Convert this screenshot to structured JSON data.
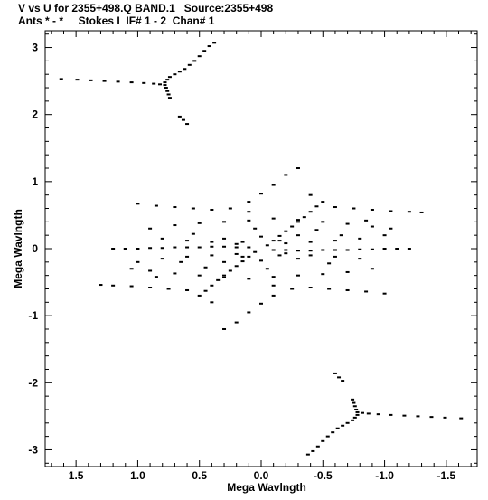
{
  "header": {
    "line1": "V vs U for 2355+498.Q BAND.1   Source:2355+498",
    "line2": "Ants * - *     Stokes I  IF# 1 - 2  Chan# 1"
  },
  "colors": {
    "ink": "#000000",
    "background": "#ffffff"
  },
  "chart_data": {
    "type": "scatter",
    "title": "V vs U for 2355+498.Q BAND.1   Source:2355+498",
    "subtitle": "Ants * - *     Stokes I  IF# 1 - 2  Chan# 1",
    "xlabel": "Mega Wavlngth",
    "ylabel": "Mega Wavlngth",
    "xlim": [
      1.75,
      -1.75
    ],
    "ylim": [
      -3.25,
      3.25
    ],
    "x_reversed": true,
    "xticks": [
      1.5,
      1.0,
      0.5,
      0.0,
      -0.5,
      -1.0,
      -1.5
    ],
    "xtick_labels": [
      "1.5",
      "1.0",
      "0.5",
      "0.0",
      "-0.5",
      "-1.0",
      "-1.5"
    ],
    "yticks": [
      3,
      2,
      1,
      0,
      -1,
      -2,
      -3
    ],
    "ytick_labels": [
      "3",
      "2",
      "1",
      "0",
      "-1",
      "-2",
      "-3"
    ],
    "grid": false,
    "series": [
      {
        "values": [
          [
            1.62,
            2.53
          ],
          [
            1.49,
            2.52
          ],
          [
            1.38,
            2.51
          ],
          [
            1.27,
            2.5
          ],
          [
            1.16,
            2.49
          ],
          [
            1.05,
            2.48
          ],
          [
            0.95,
            2.47
          ],
          [
            0.87,
            2.46
          ],
          [
            0.82,
            2.45
          ],
          [
            0.78,
            2.44
          ],
          [
            0.78,
            2.48
          ],
          [
            0.76,
            2.52
          ],
          [
            0.74,
            2.56
          ],
          [
            0.7,
            2.6
          ],
          [
            0.66,
            2.64
          ],
          [
            0.62,
            2.68
          ],
          [
            0.58,
            2.74
          ],
          [
            0.54,
            2.8
          ],
          [
            0.5,
            2.87
          ],
          [
            0.46,
            2.95
          ],
          [
            0.42,
            3.02
          ],
          [
            0.38,
            3.07
          ],
          [
            0.77,
            2.4
          ],
          [
            0.76,
            2.35
          ],
          [
            0.75,
            2.3
          ],
          [
            0.74,
            2.25
          ],
          [
            0.66,
            1.97
          ],
          [
            0.63,
            1.92
          ],
          [
            0.6,
            1.86
          ],
          [
            -1.62,
            -2.53
          ],
          [
            -1.49,
            -2.52
          ],
          [
            -1.38,
            -2.51
          ],
          [
            -1.27,
            -2.5
          ],
          [
            -1.16,
            -2.49
          ],
          [
            -1.05,
            -2.48
          ],
          [
            -0.95,
            -2.47
          ],
          [
            -0.87,
            -2.46
          ],
          [
            -0.82,
            -2.45
          ],
          [
            -0.78,
            -2.44
          ],
          [
            -0.78,
            -2.48
          ],
          [
            -0.76,
            -2.52
          ],
          [
            -0.74,
            -2.56
          ],
          [
            -0.7,
            -2.6
          ],
          [
            -0.66,
            -2.64
          ],
          [
            -0.62,
            -2.68
          ],
          [
            -0.58,
            -2.74
          ],
          [
            -0.54,
            -2.8
          ],
          [
            -0.5,
            -2.87
          ],
          [
            -0.46,
            -2.95
          ],
          [
            -0.42,
            -3.02
          ],
          [
            -0.38,
            -3.07
          ],
          [
            -0.77,
            -2.4
          ],
          [
            -0.76,
            -2.35
          ],
          [
            -0.75,
            -2.3
          ],
          [
            -0.74,
            -2.25
          ],
          [
            -0.66,
            -1.97
          ],
          [
            -0.63,
            -1.92
          ],
          [
            -0.6,
            -1.86
          ],
          [
            1.2,
            0.0
          ],
          [
            1.1,
            0.0
          ],
          [
            1.0,
            0.0
          ],
          [
            0.9,
            0.01
          ],
          [
            0.8,
            0.01
          ],
          [
            0.7,
            0.02
          ],
          [
            0.6,
            0.02
          ],
          [
            0.5,
            0.02
          ],
          [
            0.4,
            0.03
          ],
          [
            0.3,
            0.03
          ],
          [
            0.2,
            0.02
          ],
          [
            0.1,
            0.02
          ],
          [
            -0.1,
            -0.02
          ],
          [
            -0.2,
            -0.02
          ],
          [
            -0.3,
            -0.03
          ],
          [
            -0.4,
            -0.03
          ],
          [
            -0.5,
            -0.02
          ],
          [
            -0.6,
            -0.02
          ],
          [
            -0.7,
            -0.02
          ],
          [
            -0.8,
            -0.01
          ],
          [
            -0.9,
            -0.01
          ],
          [
            -1.0,
            0.0
          ],
          [
            -1.1,
            0.0
          ],
          [
            -1.2,
            0.0
          ],
          [
            0.45,
            -0.63
          ],
          [
            0.4,
            -0.55
          ],
          [
            0.35,
            -0.47
          ],
          [
            0.3,
            -0.4
          ],
          [
            0.25,
            -0.33
          ],
          [
            0.2,
            -0.26
          ],
          [
            0.15,
            -0.19
          ],
          [
            0.1,
            -0.12
          ],
          [
            0.05,
            -0.05
          ],
          [
            -0.05,
            0.05
          ],
          [
            -0.1,
            0.12
          ],
          [
            -0.15,
            0.19
          ],
          [
            -0.2,
            0.26
          ],
          [
            -0.25,
            0.33
          ],
          [
            -0.3,
            0.4
          ],
          [
            -0.35,
            0.47
          ],
          [
            -0.4,
            0.55
          ],
          [
            -0.45,
            0.63
          ],
          [
            1.0,
            0.67
          ],
          [
            0.85,
            0.64
          ],
          [
            0.7,
            0.62
          ],
          [
            0.55,
            0.6
          ],
          [
            0.4,
            0.58
          ],
          [
            0.25,
            0.6
          ],
          [
            0.1,
            0.7
          ],
          [
            0.0,
            0.82
          ],
          [
            -0.1,
            0.95
          ],
          [
            -0.2,
            1.1
          ],
          [
            -0.3,
            1.2
          ],
          [
            -0.4,
            0.8
          ],
          [
            -0.5,
            0.7
          ],
          [
            -0.6,
            0.62
          ],
          [
            -0.75,
            0.6
          ],
          [
            -0.9,
            0.58
          ],
          [
            -1.05,
            0.56
          ],
          [
            -1.2,
            0.55
          ],
          [
            -1.3,
            0.54
          ],
          [
            -1.0,
            -0.67
          ],
          [
            -0.85,
            -0.64
          ],
          [
            -0.7,
            -0.62
          ],
          [
            -0.55,
            -0.6
          ],
          [
            -0.4,
            -0.58
          ],
          [
            -0.25,
            -0.6
          ],
          [
            -0.1,
            -0.7
          ],
          [
            0.0,
            -0.82
          ],
          [
            0.1,
            -0.95
          ],
          [
            0.2,
            -1.1
          ],
          [
            0.3,
            -1.2
          ],
          [
            0.4,
            -0.8
          ],
          [
            0.5,
            -0.7
          ],
          [
            0.6,
            -0.62
          ],
          [
            0.75,
            -0.6
          ],
          [
            0.9,
            -0.58
          ],
          [
            1.05,
            -0.56
          ],
          [
            1.2,
            -0.55
          ],
          [
            1.3,
            -0.54
          ],
          [
            0.9,
            0.3
          ],
          [
            0.7,
            0.35
          ],
          [
            0.5,
            0.38
          ],
          [
            0.3,
            0.4
          ],
          [
            0.1,
            0.42
          ],
          [
            -0.1,
            0.45
          ],
          [
            -0.3,
            0.43
          ],
          [
            -0.5,
            0.4
          ],
          [
            -0.7,
            0.37
          ],
          [
            -0.9,
            0.33
          ],
          [
            -1.05,
            0.3
          ],
          [
            -0.9,
            -0.3
          ],
          [
            -0.7,
            -0.35
          ],
          [
            -0.5,
            -0.38
          ],
          [
            -0.3,
            -0.4
          ],
          [
            -0.1,
            -0.42
          ],
          [
            0.1,
            -0.45
          ],
          [
            0.3,
            -0.43
          ],
          [
            0.5,
            -0.4
          ],
          [
            0.7,
            -0.37
          ],
          [
            0.9,
            -0.33
          ],
          [
            1.05,
            -0.3
          ],
          [
            1.0,
            -0.2
          ],
          [
            0.8,
            -0.15
          ],
          [
            0.6,
            -0.12
          ],
          [
            0.4,
            -0.1
          ],
          [
            0.2,
            -0.08
          ],
          [
            -0.2,
            0.08
          ],
          [
            -0.4,
            0.1
          ],
          [
            -0.6,
            0.12
          ],
          [
            -0.8,
            0.15
          ],
          [
            -1.0,
            0.2
          ],
          [
            0.8,
            0.15
          ],
          [
            0.6,
            0.12
          ],
          [
            0.4,
            0.1
          ],
          [
            0.2,
            0.07
          ],
          [
            -0.2,
            -0.07
          ],
          [
            -0.4,
            -0.1
          ],
          [
            -0.6,
            -0.12
          ],
          [
            -0.8,
            -0.15
          ],
          [
            0.3,
            0.15
          ],
          [
            0.15,
            0.1
          ],
          [
            -0.15,
            -0.1
          ],
          [
            -0.3,
            -0.15
          ],
          [
            0.3,
            -0.2
          ],
          [
            0.15,
            -0.12
          ],
          [
            -0.15,
            0.12
          ],
          [
            -0.3,
            0.2
          ],
          [
            0.65,
            -0.2
          ],
          [
            0.45,
            -0.28
          ],
          [
            -0.45,
            0.28
          ],
          [
            -0.65,
            0.2
          ],
          [
            0.55,
            0.22
          ],
          [
            -0.55,
            -0.22
          ],
          [
            0.85,
            -0.42
          ],
          [
            -0.85,
            0.42
          ],
          [
            0.05,
            0.3
          ],
          [
            -0.05,
            -0.3
          ],
          [
            0.1,
            0.55
          ],
          [
            -0.1,
            -0.55
          ],
          [
            0.0,
            0.18
          ],
          [
            0.0,
            -0.18
          ]
        ]
      }
    ]
  }
}
